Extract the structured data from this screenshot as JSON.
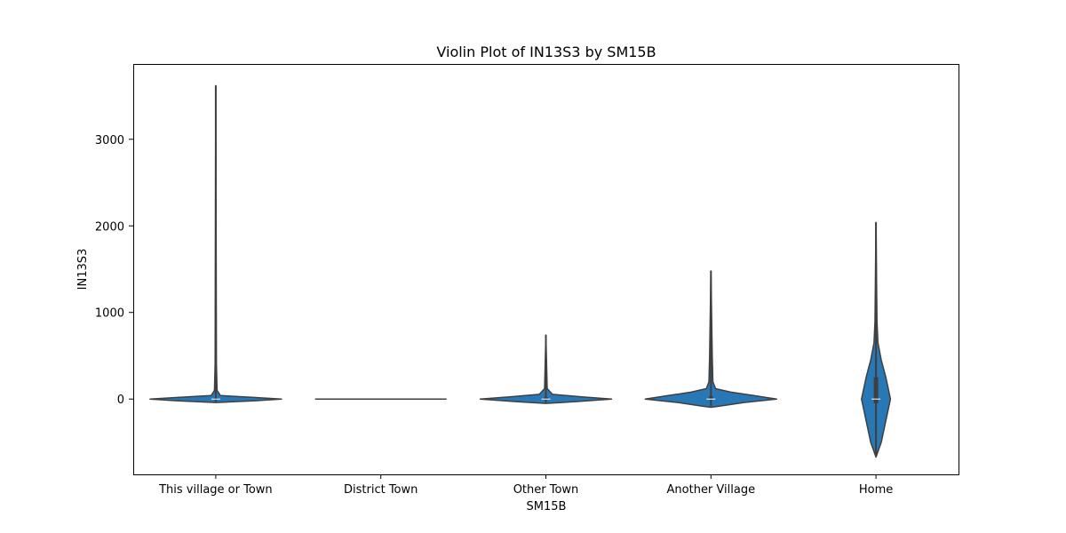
{
  "chart_data": {
    "type": "violin",
    "title": "Violin Plot of IN13S3 by SM15B",
    "xlabel": "SM15B",
    "ylabel": "IN13S3",
    "ylim": [
      -870,
      3870
    ],
    "yticks": [
      0,
      1000,
      2000,
      3000
    ],
    "grid": false,
    "legend": "none",
    "color": "#2878b5",
    "categories": [
      "This village or Town",
      "District Town",
      "Other Town",
      "Another Village",
      "Home"
    ],
    "violins": [
      {
        "category": "This village or Town",
        "max": 3620,
        "profile": [
          [
            -40,
            0
          ],
          [
            -20,
            0.6
          ],
          [
            0,
            1.0
          ],
          [
            20,
            0.55
          ],
          [
            40,
            0.07
          ],
          [
            100,
            0.02
          ],
          [
            400,
            0.01
          ],
          [
            3620,
            0
          ]
        ],
        "whisker": [
          -30,
          3620
        ],
        "box": [
          0,
          10
        ],
        "median": 0
      },
      {
        "category": "District Town",
        "max": 0,
        "profile": [
          [
            0,
            1.0
          ]
        ],
        "whisker": [
          0,
          0
        ],
        "box": [
          0,
          0
        ],
        "median": 0
      },
      {
        "category": "Other Town",
        "max": 740,
        "profile": [
          [
            -50,
            0
          ],
          [
            -30,
            0.45
          ],
          [
            0,
            1.0
          ],
          [
            25,
            0.55
          ],
          [
            55,
            0.1
          ],
          [
            120,
            0.02
          ],
          [
            740,
            0
          ]
        ],
        "whisker": [
          -40,
          740
        ],
        "box": [
          0,
          20
        ],
        "median": 0
      },
      {
        "category": "Another Village",
        "max": 1480,
        "profile": [
          [
            -95,
            0
          ],
          [
            -80,
            0.15
          ],
          [
            -40,
            0.5
          ],
          [
            0,
            1.0
          ],
          [
            40,
            0.65
          ],
          [
            80,
            0.3
          ],
          [
            120,
            0.07
          ],
          [
            200,
            0.03
          ],
          [
            500,
            0.02
          ],
          [
            1480,
            0
          ]
        ],
        "whisker": [
          -80,
          1480
        ],
        "box": [
          0,
          30
        ],
        "median": 0
      },
      {
        "category": "Home",
        "max": 2040,
        "profile": [
          [
            -670,
            0
          ],
          [
            -500,
            0.08
          ],
          [
            -250,
            0.15
          ],
          [
            0,
            0.22
          ],
          [
            250,
            0.15
          ],
          [
            450,
            0.08
          ],
          [
            650,
            0.03
          ],
          [
            900,
            0.015
          ],
          [
            2040,
            0
          ]
        ],
        "whisker": [
          -670,
          2040
        ],
        "box": [
          -50,
          250
        ],
        "median": 0
      }
    ]
  }
}
